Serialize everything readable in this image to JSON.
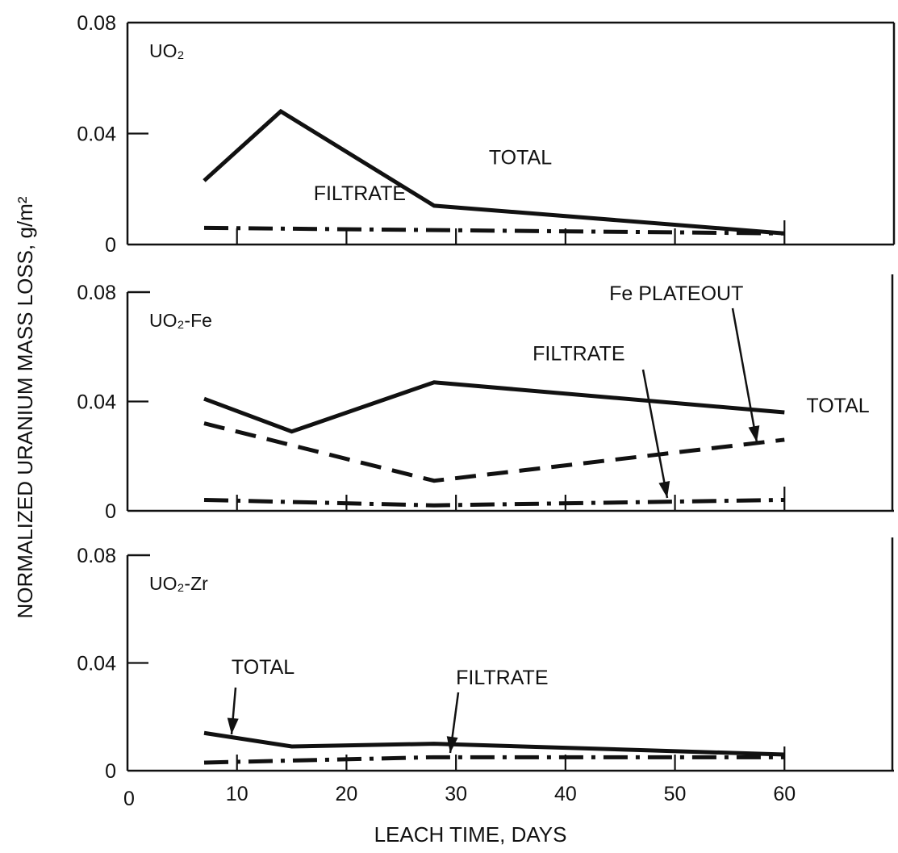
{
  "chart_data": {
    "type": "line",
    "xlabel": "LEACH TIME, DAYS",
    "ylabel": "NORMALIZED URANIUM MASS LOSS, g/m²",
    "x_ticks": [
      "0",
      "10",
      "20",
      "30",
      "40",
      "50",
      "60"
    ],
    "xlim": [
      0,
      70
    ],
    "panels": [
      {
        "title": "UO₂",
        "ylim": [
          0,
          0.08
        ],
        "y_ticks": [
          "0",
          "0.04",
          "0.08"
        ],
        "series": [
          {
            "name": "TOTAL",
            "style": "solid",
            "x": [
              7,
              14,
              28,
              60
            ],
            "y": [
              0.023,
              0.048,
              0.014,
              0.004
            ]
          },
          {
            "name": "FILTRATE",
            "style": "dash-dot",
            "x": [
              7,
              60
            ],
            "y": [
              0.006,
              0.004
            ]
          }
        ],
        "annotations": [
          {
            "text": "TOTAL",
            "x": 33,
            "y": 0.029
          },
          {
            "text": "FILTRATE",
            "x": 17,
            "y": 0.016
          }
        ]
      },
      {
        "title": "UO₂-Fe",
        "ylim": [
          0,
          0.08
        ],
        "y_ticks": [
          "0",
          "0.04",
          "0.08"
        ],
        "series": [
          {
            "name": "TOTAL",
            "style": "solid",
            "x": [
              7,
              15,
              28,
              60
            ],
            "y": [
              0.041,
              0.029,
              0.047,
              0.036
            ]
          },
          {
            "name": "Fe PLATEOUT",
            "style": "dashed",
            "x": [
              7,
              28,
              60
            ],
            "y": [
              0.032,
              0.011,
              0.026
            ]
          },
          {
            "name": "FILTRATE",
            "style": "dash-dot",
            "x": [
              7,
              28,
              60
            ],
            "y": [
              0.004,
              0.002,
              0.004
            ]
          }
        ],
        "annotations": [
          {
            "text": "TOTAL",
            "x": 62,
            "y": 0.036
          },
          {
            "text": "FILTRATE",
            "x": 37,
            "y": 0.055
          },
          {
            "text": "Fe PLATEOUT",
            "x": 44,
            "y": 0.077
          }
        ]
      },
      {
        "title": "UO₂-Zr",
        "ylim": [
          0,
          0.08
        ],
        "y_ticks": [
          "0",
          "0.04",
          "0.08"
        ],
        "series": [
          {
            "name": "TOTAL",
            "style": "solid",
            "x": [
              7,
              15,
              28,
              60
            ],
            "y": [
              0.014,
              0.009,
              0.01,
              0.006
            ]
          },
          {
            "name": "FILTRATE",
            "style": "dash-dot",
            "x": [
              7,
              28,
              60
            ],
            "y": [
              0.003,
              0.005,
              0.005
            ]
          }
        ],
        "annotations": [
          {
            "text": "TOTAL",
            "x": 9.5,
            "y": 0.036
          },
          {
            "text": "FILTRATE",
            "x": 30,
            "y": 0.032
          }
        ]
      }
    ]
  }
}
